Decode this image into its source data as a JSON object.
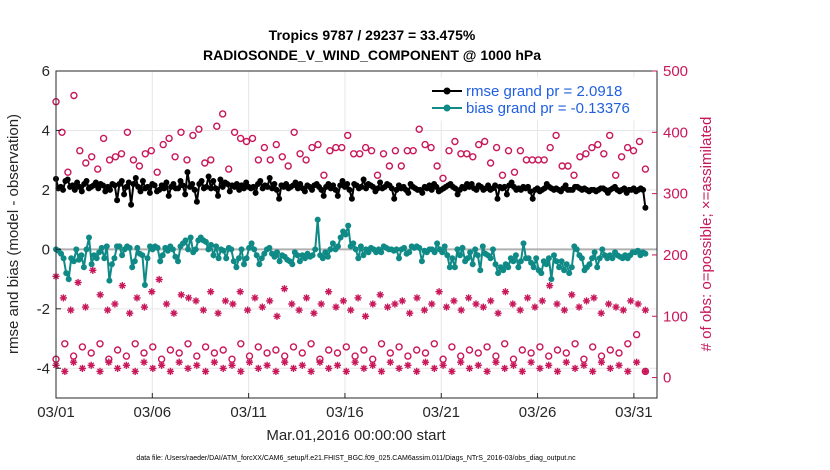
{
  "chart_data": {
    "type": "line",
    "title": "Tropics 9787 / 29237 = 33.475%",
    "subtitle": "RADIOSONDE_V_WIND_COMPONENT @ 1000 hPa",
    "xlabel": "Mar.01,2016 00:00:00 start",
    "ylabel": "rmse and bias (model - observation)",
    "ylabel_right": "# of obs: o=possible; ×=assimilated",
    "x_tick_labels": [
      "03/01",
      "03/06",
      "03/11",
      "03/16",
      "03/21",
      "03/26",
      "03/31"
    ],
    "x_tick_days": [
      0,
      5,
      10,
      15,
      20,
      25,
      30
    ],
    "xlim_days": [
      0,
      31.2
    ],
    "ylim": [
      -5,
      6
    ],
    "y_ticks": [
      -4,
      -2,
      0,
      2,
      4,
      6
    ],
    "ylim_right": [
      -33.33,
      500
    ],
    "y_ticks_right": [
      0,
      100,
      200,
      300,
      400,
      500
    ],
    "footer": "data file: /Users/raeder/DAI/ATM_forcXX/CAM6_setup/f.e21.FHIST_BGC.f09_025.CAM6assim.011/Diags_NTrS_2016-03/obs_diag_output.nc",
    "colors": {
      "rmse": "#000000",
      "bias": "#0f8a86",
      "obs": "#c8175a",
      "legend_text": "#1f5fe0",
      "zero_line": "#b0b0b0"
    },
    "series": [
      {
        "name": "rmse grand pr = 2.0918",
        "values": [
          2.37,
          2.05,
          2.1,
          2.0,
          2.3,
          2.35,
          2.1,
          2.15,
          2.0,
          2.25,
          2.1,
          1.95,
          2.2,
          2.3,
          2.05,
          2.1,
          2.15,
          2.25,
          2.05,
          2.2,
          2.15,
          1.95,
          2.1,
          2.0,
          2.2,
          2.15,
          1.65,
          2.2,
          2.3,
          1.85,
          2.1,
          2.25,
          1.5,
          2.2,
          2.4,
          2.1,
          1.95,
          2.3,
          2.05,
          2.1,
          1.9,
          2.2,
          2.15,
          1.95,
          2.0,
          2.15,
          2.05,
          2.25,
          1.8,
          2.1,
          2.2,
          2.05,
          2.05,
          2.3,
          2.15,
          1.85,
          2.6,
          2.1,
          2.2,
          2.0,
          1.6,
          2.2,
          2.3,
          2.05,
          2.1,
          2.45,
          2.05,
          2.3,
          2.05,
          1.8,
          2.35,
          2.1,
          2.25,
          2.2,
          1.95,
          2.15,
          2.1,
          2.2,
          2.0,
          2.15,
          2.05,
          2.25,
          2.1,
          2.05,
          2.1,
          1.9,
          2.2,
          2.3,
          2.05,
          2.15,
          2.1,
          2.4,
          2.05,
          2.2,
          2.0,
          1.7,
          2.15,
          2.1,
          2.2,
          2.05,
          2.1,
          2.15,
          2.25,
          2.05,
          2.2,
          2.05,
          1.95,
          2.15,
          2.1,
          2.0,
          2.15,
          2.2,
          2.1,
          2.0,
          1.8,
          2.1,
          2.2,
          2.05,
          2.15,
          2.0,
          1.8,
          2.15,
          2.3,
          2.1,
          2.2,
          2.0,
          1.7,
          2.2,
          2.15,
          2.05,
          2.1,
          2.35,
          2.05,
          2.2,
          2.15,
          2.1,
          1.95,
          2.05,
          2.25,
          2.05,
          2.1,
          2.2,
          2.15,
          2.05,
          1.7,
          2.0,
          2.15,
          2.05,
          2.1,
          2.0,
          1.9,
          2.2,
          2.1,
          2.05,
          2.0,
          2.0,
          1.9,
          2.1,
          2.05,
          2.15,
          2.0,
          2.2,
          2.1,
          1.95,
          2.0,
          2.05,
          2.1,
          2.15,
          2.2,
          2.1,
          2.05,
          1.85,
          2.0,
          2.1,
          2.05,
          2.2,
          2.1,
          2.2,
          2.05,
          2.0,
          2.15,
          2.1,
          2.0,
          2.05,
          2.15,
          2.0,
          2.05,
          2.15,
          1.7,
          2.1,
          2.05,
          2.1,
          1.85,
          2.15,
          2.25,
          2.1,
          2.0,
          2.05,
          2.0,
          2.1,
          2.05,
          2.1,
          1.95,
          1.7,
          2.0,
          2.05,
          1.95,
          2.0,
          2.05,
          2.2,
          2.1,
          2.05,
          2.0,
          2.05,
          2.0,
          1.95,
          2.05,
          2.15,
          2.0,
          2.0,
          2.0,
          2.1,
          2.1,
          2.05,
          2.0,
          2.05,
          2.0,
          1.95,
          2.0,
          2.0,
          1.95,
          2.0,
          2.05,
          2.05,
          2.0,
          1.9,
          2.0,
          2.05,
          2.1,
          2.0,
          1.95,
          2.0,
          2.05,
          1.9,
          2.0,
          2.0,
          2.05,
          1.95,
          2.0,
          2.05,
          2.0,
          1.4
        ]
      },
      {
        "name": "bias grand pr = -0.13376",
        "values": [
          0.0,
          -0.05,
          -0.15,
          -0.3,
          -0.8,
          -1.0,
          -0.3,
          -0.4,
          0.0,
          -0.35,
          -0.2,
          -0.6,
          0.0,
          0.4,
          -0.5,
          -0.2,
          -0.3,
          -0.1,
          0.05,
          -0.3,
          0.1,
          -1.05,
          -0.5,
          -0.3,
          0.1,
          0.1,
          -0.2,
          0.0,
          0.1,
          0.05,
          -0.6,
          -0.4,
          0.05,
          -0.15,
          -0.2,
          -1.2,
          -0.3,
          0.1,
          0.0,
          0.1,
          0.05,
          -0.4,
          -0.2,
          0.05,
          -0.05,
          0.1,
          0.0,
          -0.25,
          -0.4,
          0.1,
          0.2,
          0.3,
          0.0,
          0.4,
          -0.1,
          0.0,
          0.3,
          0.4,
          0.3,
          0.25,
          0.0,
          0.15,
          -0.2,
          0.1,
          -0.3,
          0.0,
          -0.05,
          -0.3,
          0.05,
          0.0,
          -0.4,
          -0.6,
          -0.3,
          0.0,
          -0.5,
          -0.3,
          0.05,
          0.2,
          0.0,
          -0.2,
          -0.5,
          -0.3,
          -0.15,
          0.0,
          0.05,
          -0.15,
          -0.25,
          -0.1,
          -0.4,
          -0.2,
          -0.25,
          -0.35,
          -0.4,
          -0.5,
          -0.1,
          -0.2,
          -0.4,
          -0.2,
          -0.3,
          -0.15,
          -0.25,
          -0.2,
          0.0,
          1.0,
          -0.2,
          -0.3,
          -0.1,
          -0.25,
          0.0,
          0.2,
          0.0,
          0.1,
          0.4,
          0.6,
          0.5,
          0.8,
          0.1,
          0.2,
          0.0,
          -0.3,
          0.1,
          -0.2,
          0.0,
          -0.1,
          0.05,
          0.0,
          -0.1,
          0.0,
          -0.1,
          0.1,
          0.05,
          0.0,
          0.0,
          -0.05,
          0.0,
          -0.3,
          0.0,
          0.05,
          -0.15,
          -0.1,
          0.1,
          0.05,
          0.1,
          0.05,
          -0.4,
          -0.05,
          -0.1,
          0.0,
          0.0,
          -0.1,
          0.2,
          0.0,
          -0.1,
          0.1,
          -0.2,
          -0.6,
          -0.3,
          -0.6,
          0.0,
          -0.2,
          0.05,
          -0.4,
          -0.3,
          -0.1,
          -0.5,
          0.0,
          -0.2,
          -0.7,
          0.1,
          -0.15,
          -0.2,
          -0.3,
          0.0,
          -0.5,
          -0.8,
          -0.6,
          -0.7,
          -0.5,
          -0.6,
          -0.3,
          -0.4,
          -0.2,
          -0.6,
          -0.4,
          0.2,
          -0.3,
          -0.3,
          -0.45,
          -0.6,
          -0.3,
          -0.7,
          -0.8,
          -0.4,
          -0.5,
          -0.3,
          -1.0,
          -0.2,
          -0.4,
          -0.6,
          -0.4,
          -0.7,
          -0.5,
          -0.8,
          -0.6,
          0.1,
          0.0,
          -0.2,
          -0.3,
          -0.7,
          -0.6,
          -0.5,
          -0.3,
          -0.1,
          -0.6,
          -0.3,
          0.0,
          -0.2,
          -0.3,
          -0.2,
          -0.3,
          -0.1,
          -0.2,
          -0.25,
          -0.3,
          -0.2,
          -0.3,
          -0.2,
          -0.1,
          -0.1,
          -0.05,
          -0.2,
          -0.1,
          -0.15
        ]
      },
      {
        "name": "possible obs (o)",
        "axis": "right",
        "values": [
          450,
          400,
          335,
          460,
          370,
          350,
          360,
          340,
          390,
          355,
          360,
          365,
          400,
          355,
          345,
          365,
          370,
          335,
          380,
          390,
          360,
          400,
          355,
          395,
          405,
          350,
          355,
          410,
          430,
          340,
          400,
          390,
          385,
          390,
          355,
          375,
          355,
          380,
          360,
          345,
          400,
          365,
          355,
          375,
          380,
          330,
          370,
          375,
          375,
          395,
          365,
          365,
          375,
          370,
          330,
          365,
          345,
          370,
          345,
          370,
          370,
          405,
          380,
          375,
          345,
          325,
          370,
          385,
          365,
          365,
          360,
          380,
          385,
          350,
          375,
          330,
          370,
          335,
          370,
          355,
          355,
          355,
          355,
          375,
          395,
          345,
          345,
          330,
          360,
          365,
          375,
          380,
          365,
          395,
          330,
          360,
          375,
          370,
          385,
          340
        ]
      },
      {
        "name": "possible obs (o) lower group",
        "axis": "right",
        "values": [
          30,
          55,
          35,
          50,
          40,
          55,
          30,
          45,
          35,
          55,
          40,
          50,
          30,
          45,
          40,
          55,
          35,
          50,
          40,
          45,
          30,
          55,
          35,
          50,
          40,
          45,
          35,
          50,
          40,
          55,
          30,
          45,
          40,
          50,
          35,
          45,
          30,
          55,
          40,
          50,
          35,
          45,
          40,
          55,
          30,
          50,
          35,
          45,
          40,
          50,
          35,
          55,
          30,
          45,
          40,
          50,
          35,
          45,
          40,
          55,
          30,
          50,
          35,
          45,
          40,
          55,
          70,
          10
        ]
      },
      {
        "name": "assimilated obs (×)",
        "axis": "right",
        "values": [
          165,
          130,
          110,
          155,
          115,
          175,
          135,
          110,
          120,
          150,
          105,
          130,
          115,
          140,
          160,
          120,
          105,
          135,
          130,
          125,
          110,
          140,
          105,
          125,
          120,
          140,
          110,
          130,
          115,
          125,
          100,
          145,
          120,
          110,
          130,
          105,
          120,
          140,
          115,
          125,
          110,
          130,
          100,
          120,
          135,
          115,
          120,
          125,
          105,
          130,
          110,
          120,
          140,
          115,
          125,
          110,
          130,
          120,
          115,
          125,
          105,
          140,
          120,
          110,
          130,
          115,
          125,
          150,
          120,
          110,
          135,
          115,
          125,
          130,
          105,
          120,
          115,
          110,
          125,
          120,
          110
        ]
      },
      {
        "name": "assimilated obs (×) lower group",
        "axis": "right",
        "values": [
          20,
          10,
          25,
          15,
          20,
          10,
          25,
          15,
          20,
          10,
          25,
          15,
          20,
          10,
          25,
          15,
          20,
          10,
          25,
          15,
          20,
          10,
          25,
          15,
          20,
          10,
          25,
          15,
          20,
          10,
          25,
          15,
          20,
          10,
          25,
          15,
          20,
          10,
          25,
          15,
          20,
          10,
          25,
          15,
          20,
          10,
          25,
          15,
          20,
          10,
          25,
          15,
          20,
          10,
          25,
          15,
          20,
          10,
          25,
          15,
          20,
          10,
          25,
          15,
          20,
          10,
          25,
          10
        ]
      }
    ]
  }
}
